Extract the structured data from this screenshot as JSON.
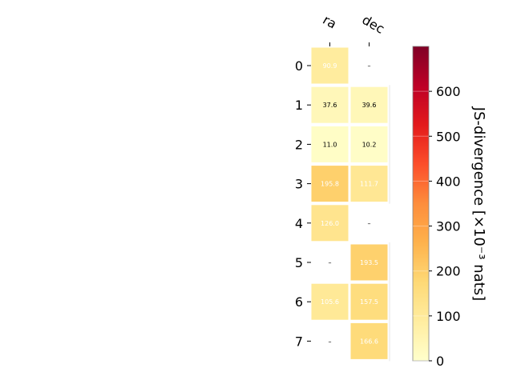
{
  "chart_data": {
    "type": "heatmap",
    "columns": [
      "ra",
      "dec"
    ],
    "rows": [
      "0",
      "1",
      "2",
      "3",
      "4",
      "5",
      "6",
      "7"
    ],
    "values": [
      [
        90.9,
        null
      ],
      [
        37.6,
        39.6
      ],
      [
        11.0,
        10.2
      ],
      [
        195.8,
        111.7
      ],
      [
        126.0,
        null
      ],
      [
        null,
        193.5
      ],
      [
        105.6,
        157.5
      ],
      [
        null,
        166.6
      ]
    ],
    "missing_label": "–",
    "colorbar": {
      "label": "JS-divergence [×10⁻³ nats]",
      "range": [
        0,
        700
      ],
      "ticks": [
        0,
        100,
        200,
        300,
        400,
        500,
        600
      ],
      "colormap": "YlOrRd"
    },
    "colors": {
      "text_dark": "#000000",
      "text_light": "#ffffff",
      "grid": "#ffffff"
    }
  }
}
